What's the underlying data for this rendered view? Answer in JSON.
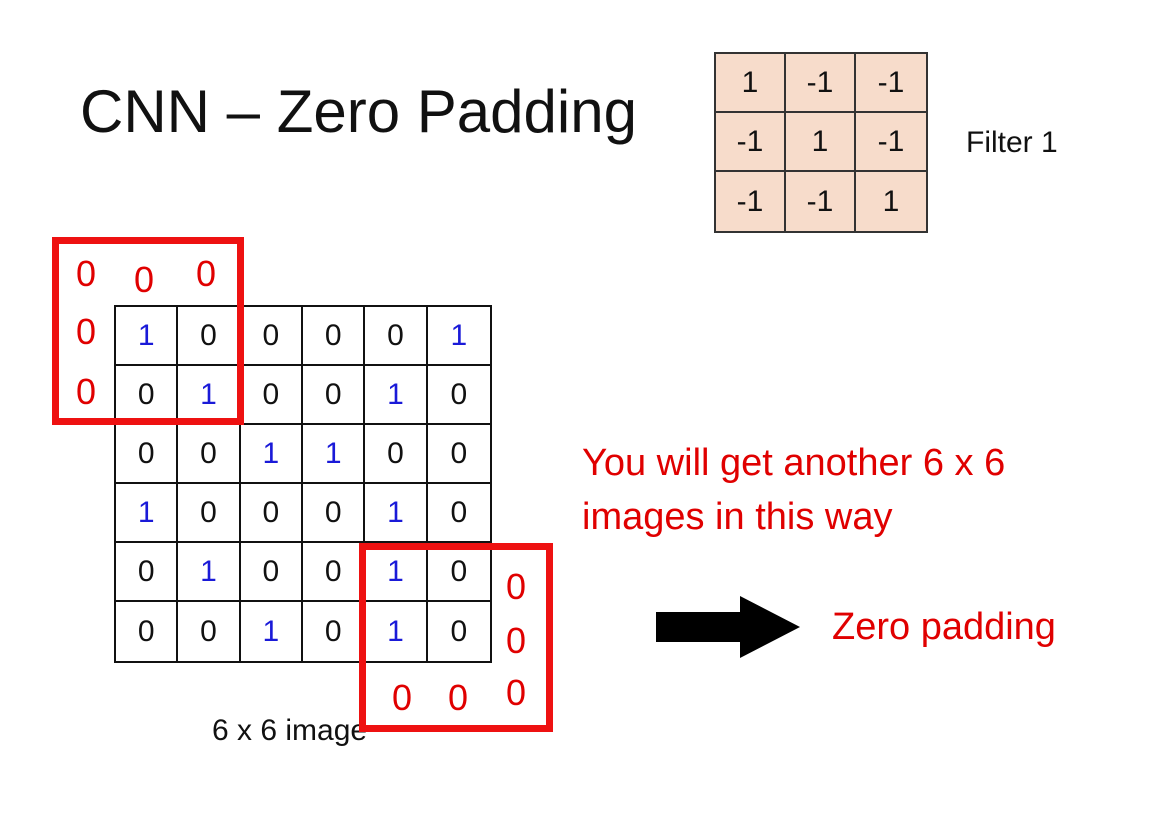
{
  "slide": {
    "title": "CNN – Zero Padding",
    "filter": {
      "label": "Filter 1",
      "cells": [
        "1",
        "-1",
        "-1",
        "-1",
        "1",
        "-1",
        "-1",
        "-1",
        "1"
      ]
    },
    "image": {
      "caption": "6 x 6 image",
      "cells": [
        "1",
        "0",
        "0",
        "0",
        "0",
        "1",
        "0",
        "1",
        "0",
        "0",
        "1",
        "0",
        "0",
        "0",
        "1",
        "1",
        "0",
        "0",
        "1",
        "0",
        "0",
        "0",
        "1",
        "0",
        "0",
        "1",
        "0",
        "0",
        "1",
        "0",
        "0",
        "0",
        "1",
        "0",
        "1",
        "0"
      ]
    },
    "padding_zero": "0",
    "note_line1": "You will get another 6 x 6",
    "note_line2": "images in this way",
    "zero_padding_label": "Zero padding",
    "colors": {
      "red": "#e00000",
      "blue": "#1a1ad8"
    }
  }
}
